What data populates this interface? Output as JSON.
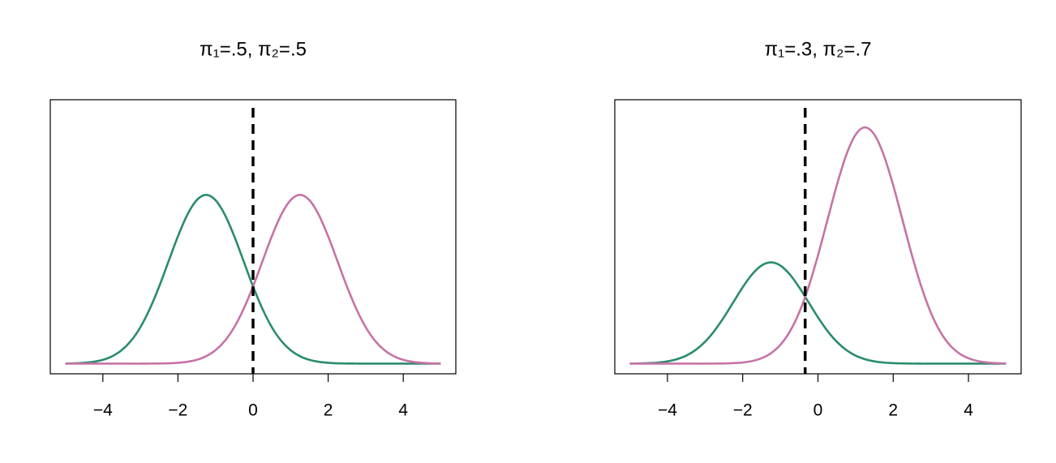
{
  "chart_data": [
    {
      "type": "line",
      "title": "π₁=.5,   π₂=.5",
      "x": [
        -5,
        -4.75,
        -4.5,
        -4.25,
        -4,
        -3.75,
        -3.5,
        -3.25,
        -3,
        -2.75,
        -2.5,
        -2.25,
        -2,
        -1.75,
        -1.5,
        -1.25,
        -1,
        -0.75,
        -0.5,
        -0.25,
        0,
        0.25,
        0.5,
        0.75,
        1,
        1.25,
        1.5,
        1.75,
        2,
        2.25,
        2.5,
        2.75,
        3,
        3.25,
        3.5,
        3.75,
        4,
        4.25,
        4.5,
        4.75,
        5
      ],
      "series": [
        {
          "color": "#2b8b6f",
          "values": [
            0.0002,
            0.0004,
            0.001,
            0.0022,
            0.0045,
            0.0088,
            0.0159,
            0.027,
            0.0431,
            0.0648,
            0.0913,
            0.121,
            0.1506,
            0.176,
            0.1933,
            0.1995,
            0.1933,
            0.176,
            0.1506,
            0.121,
            0.0913,
            0.0648,
            0.0431,
            0.027,
            0.0159,
            0.0088,
            0.0045,
            0.0022,
            0.001,
            0.0004,
            0.0002,
            0.0001,
            0,
            0,
            0,
            0,
            0,
            0,
            0,
            0,
            0
          ]
        },
        {
          "color": "#c673a6",
          "values": [
            0,
            0,
            0,
            0,
            0,
            0,
            0,
            0,
            0,
            0.0001,
            0.0002,
            0.0004,
            0.001,
            0.0022,
            0.0045,
            0.0088,
            0.0159,
            0.027,
            0.0431,
            0.0648,
            0.0913,
            0.121,
            0.1506,
            0.176,
            0.1933,
            0.1995,
            0.1933,
            0.176,
            0.1506,
            0.121,
            0.0913,
            0.0648,
            0.0431,
            0.027,
            0.0159,
            0.0088,
            0.0045,
            0.0022,
            0.001,
            0.0004,
            0.0002
          ]
        }
      ],
      "vline": 0,
      "xlim": [
        -5.4,
        5.4
      ],
      "ylim": [
        -0.012,
        0.312
      ],
      "xticks": [
        {
          "value": -4,
          "label": "−4"
        },
        {
          "value": -2,
          "label": "−2"
        },
        0,
        2,
        4
      ]
    },
    {
      "type": "line",
      "title": "π₁=.3,   π₂=.7",
      "x": [
        -5,
        -4.75,
        -4.5,
        -4.25,
        -4,
        -3.75,
        -3.5,
        -3.25,
        -3,
        -2.75,
        -2.5,
        -2.25,
        -2,
        -1.75,
        -1.5,
        -1.25,
        -1,
        -0.75,
        -0.5,
        -0.25,
        0,
        0.25,
        0.5,
        0.75,
        1,
        1.25,
        1.5,
        1.75,
        2,
        2.25,
        2.5,
        2.75,
        3,
        3.25,
        3.5,
        3.75,
        4,
        4.25,
        4.5,
        4.75,
        5
      ],
      "series": [
        {
          "color": "#2b8b6f",
          "values": [
            0.0001,
            0.0003,
            0.0006,
            0.0013,
            0.0027,
            0.0053,
            0.0095,
            0.0162,
            0.0259,
            0.0389,
            0.0548,
            0.0726,
            0.0903,
            0.1056,
            0.116,
            0.1197,
            0.116,
            0.1056,
            0.0903,
            0.0726,
            0.0548,
            0.0389,
            0.0259,
            0.0162,
            0.0095,
            0.0053,
            0.0027,
            0.0013,
            0.0006,
            0.0003,
            0.0001,
            0,
            0,
            0,
            0,
            0,
            0,
            0,
            0,
            0,
            0
          ]
        },
        {
          "color": "#c673a6",
          "values": [
            0,
            0,
            0,
            0,
            0,
            0,
            0,
            0,
            0,
            0.0001,
            0.0002,
            0.0006,
            0.0014,
            0.0031,
            0.0064,
            0.0123,
            0.0222,
            0.0378,
            0.0604,
            0.0907,
            0.1279,
            0.1694,
            0.2108,
            0.2464,
            0.2707,
            0.2793,
            0.2707,
            0.2464,
            0.2108,
            0.1694,
            0.1279,
            0.0907,
            0.0604,
            0.0378,
            0.0222,
            0.0123,
            0.0064,
            0.0031,
            0.0014,
            0.0006,
            0.0002
          ]
        }
      ],
      "vline": -0.34,
      "xlim": [
        -5.4,
        5.4
      ],
      "ylim": [
        -0.012,
        0.312
      ],
      "xticks": [
        {
          "value": -4,
          "label": "−4"
        },
        {
          "value": -2,
          "label": "−2"
        },
        0,
        2,
        4
      ]
    }
  ]
}
